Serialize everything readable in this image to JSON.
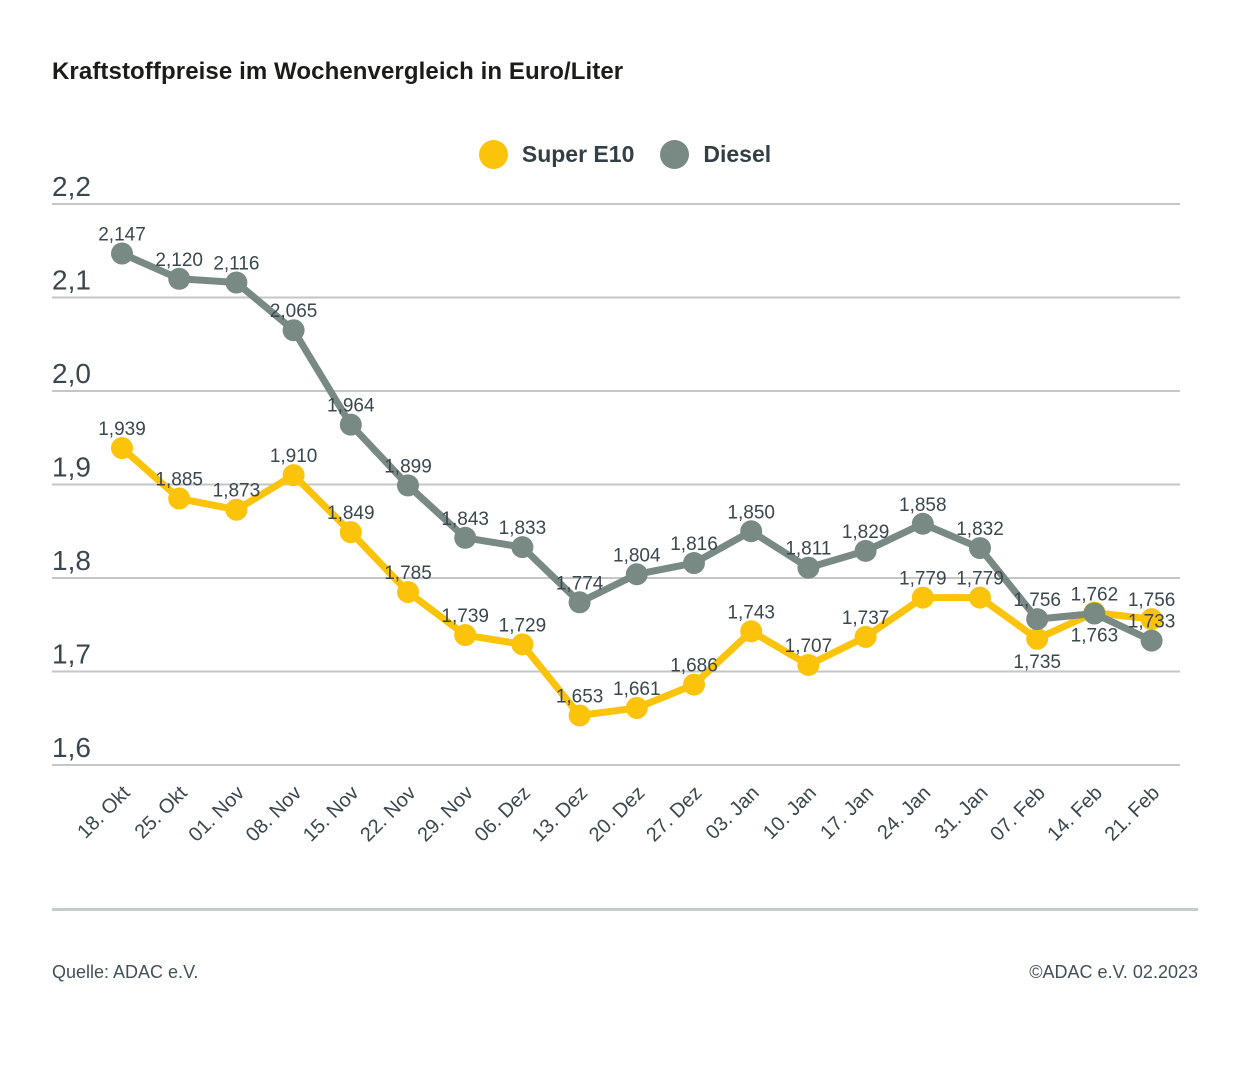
{
  "title": "Kraftstoffpreise im Wochenvergleich in Euro/Liter",
  "legend": [
    {
      "label": "Super E10",
      "color": "#FCC30B"
    },
    {
      "label": "Diesel",
      "color": "#798A84"
    }
  ],
  "footer": {
    "source": "Quelle: ADAC e.V.",
    "copyright": "©ADAC e.V. 02.2023"
  },
  "colors": {
    "super_e10": "#FCC30B",
    "diesel": "#798A84",
    "label_text": "#3A474E",
    "gridline": "#C6C6C6",
    "title_text": "#1C1C1B"
  },
  "chart_data": {
    "type": "line",
    "title": "Kraftstoffpreise im Wochenvergleich in Euro/Liter",
    "xlabel": "",
    "ylabel": "Euro/Liter",
    "categories": [
      "18. Okt",
      "25. Okt",
      "01. Nov",
      "08. Nov",
      "15. Nov",
      "22. Nov",
      "29. Nov",
      "06. Dez",
      "13. Dez",
      "20. Dez",
      "27. Dez",
      "03. Jan",
      "10. Jan",
      "17. Jan",
      "24. Jan",
      "31. Jan",
      "07. Feb",
      "14. Feb",
      "21. Feb"
    ],
    "series": [
      {
        "name": "Super E10",
        "color": "#FCC30B",
        "values": [
          1.939,
          1.885,
          1.873,
          1.91,
          1.849,
          1.785,
          1.739,
          1.729,
          1.653,
          1.661,
          1.686,
          1.743,
          1.707,
          1.737,
          1.779,
          1.779,
          1.735,
          1.763,
          1.756
        ],
        "label_below_indices": [
          16,
          17
        ]
      },
      {
        "name": "Diesel",
        "color": "#798A84",
        "values": [
          2.147,
          2.12,
          2.116,
          2.065,
          1.964,
          1.899,
          1.843,
          1.833,
          1.774,
          1.804,
          1.816,
          1.85,
          1.811,
          1.829,
          1.858,
          1.832,
          1.756,
          1.762,
          1.733
        ],
        "label_below_indices": []
      }
    ],
    "ylim": [
      1.6,
      2.2
    ],
    "yticks": [
      1.6,
      1.7,
      1.8,
      1.9,
      2.0,
      2.1,
      2.2
    ],
    "grid": true,
    "legend_position": "top-center",
    "value_label_format": "decimal-comma-3",
    "tick_label_format": "decimal-comma-1"
  }
}
